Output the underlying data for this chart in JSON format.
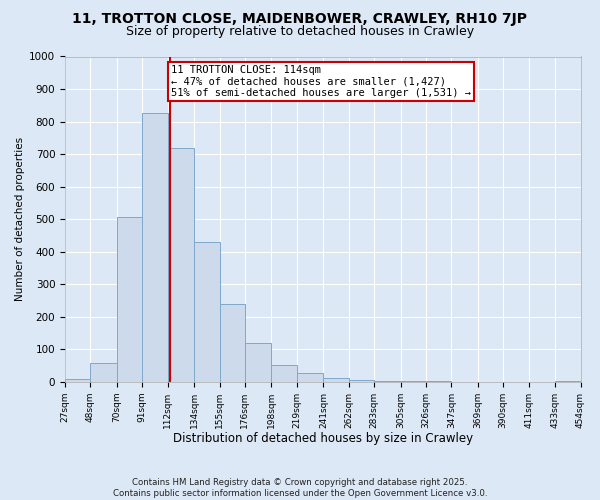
{
  "title1": "11, TROTTON CLOSE, MAIDENBOWER, CRAWLEY, RH10 7JP",
  "title2": "Size of property relative to detached houses in Crawley",
  "xlabel": "Distribution of detached houses by size in Crawley",
  "ylabel": "Number of detached properties",
  "bin_edges": [
    27,
    48,
    70,
    91,
    112,
    134,
    155,
    176,
    198,
    219,
    241,
    262,
    283,
    305,
    326,
    347,
    369,
    390,
    411,
    433,
    454
  ],
  "bar_heights": [
    8,
    58,
    505,
    825,
    720,
    430,
    238,
    118,
    52,
    28,
    12,
    5,
    3,
    1,
    1,
    0,
    0,
    0,
    0,
    3
  ],
  "bar_color": "#cddaeb",
  "bar_edge_color": "#7da8cc",
  "subject_value": 114,
  "vline_color": "#cc0000",
  "annotation_box_color": "#cc0000",
  "annotation_line1": "11 TROTTON CLOSE: 114sqm",
  "annotation_line2": "← 47% of detached houses are smaller (1,427)",
  "annotation_line3": "51% of semi-detached houses are larger (1,531) →",
  "annotation_fontsize": 7.5,
  "footer": "Contains HM Land Registry data © Crown copyright and database right 2025.\nContains public sector information licensed under the Open Government Licence v3.0.",
  "background_color": "#dce8f5",
  "plot_bg_color": "#dce8f5",
  "yticks": [
    0,
    100,
    200,
    300,
    400,
    500,
    600,
    700,
    800,
    900,
    1000
  ],
  "title1_fontsize": 10,
  "title2_fontsize": 9,
  "xlabel_fontsize": 8.5,
  "ylabel_fontsize": 7.5,
  "grid_color": "#ffffff",
  "tick_label_fontsize": 6.5
}
